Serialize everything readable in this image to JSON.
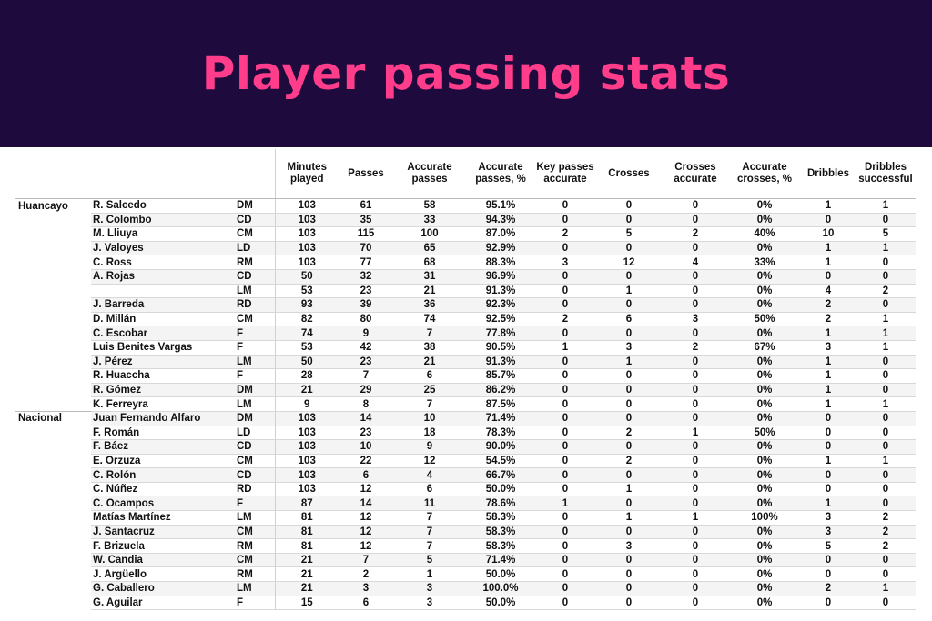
{
  "title": "Player passing stats",
  "columns": [
    "Minutes played",
    "Passes",
    "Accurate passes",
    "Accurate passes, %",
    "Key passes accurate",
    "Crosses",
    "Crosses accurate",
    "Accurate crosses, %",
    "Dribbles",
    "Dribbles successful"
  ],
  "rows": [
    {
      "team": "Huancayo",
      "player": "R. Salcedo",
      "pos": "DM",
      "v": [
        "103",
        "61",
        "58",
        "95.1%",
        "0",
        "0",
        "0",
        "0%",
        "1",
        "1"
      ]
    },
    {
      "team": "",
      "player": "R. Colombo",
      "pos": "CD",
      "v": [
        "103",
        "35",
        "33",
        "94.3%",
        "0",
        "0",
        "0",
        "0%",
        "0",
        "0"
      ]
    },
    {
      "team": "",
      "player": "M. Lliuya",
      "pos": "CM",
      "v": [
        "103",
        "115",
        "100",
        "87.0%",
        "2",
        "5",
        "2",
        "40%",
        "10",
        "5"
      ]
    },
    {
      "team": "",
      "player": "J. Valoyes",
      "pos": "LD",
      "v": [
        "103",
        "70",
        "65",
        "92.9%",
        "0",
        "0",
        "0",
        "0%",
        "1",
        "1"
      ]
    },
    {
      "team": "",
      "player": "C. Ross",
      "pos": "RM",
      "v": [
        "103",
        "77",
        "68",
        "88.3%",
        "3",
        "12",
        "4",
        "33%",
        "1",
        "0"
      ]
    },
    {
      "team": "",
      "player": "A. Rojas",
      "pos": "CD",
      "v": [
        "50",
        "32",
        "31",
        "96.9%",
        "0",
        "0",
        "0",
        "0%",
        "0",
        "0"
      ]
    },
    {
      "team": "",
      "player": "",
      "pos": "LM",
      "v": [
        "53",
        "23",
        "21",
        "91.3%",
        "0",
        "1",
        "0",
        "0%",
        "4",
        "2"
      ]
    },
    {
      "team": "",
      "player": "J. Barreda",
      "pos": "RD",
      "v": [
        "93",
        "39",
        "36",
        "92.3%",
        "0",
        "0",
        "0",
        "0%",
        "2",
        "0"
      ]
    },
    {
      "team": "",
      "player": "D. Millán",
      "pos": "CM",
      "v": [
        "82",
        "80",
        "74",
        "92.5%",
        "2",
        "6",
        "3",
        "50%",
        "2",
        "1"
      ]
    },
    {
      "team": "",
      "player": "C. Escobar",
      "pos": "F",
      "v": [
        "74",
        "9",
        "7",
        "77.8%",
        "0",
        "0",
        "0",
        "0%",
        "1",
        "1"
      ]
    },
    {
      "team": "",
      "player": "Luis Benites Vargas",
      "pos": "F",
      "v": [
        "53",
        "42",
        "38",
        "90.5%",
        "1",
        "3",
        "2",
        "67%",
        "3",
        "1"
      ]
    },
    {
      "team": "",
      "player": "J. Pérez",
      "pos": "LM",
      "v": [
        "50",
        "23",
        "21",
        "91.3%",
        "0",
        "1",
        "0",
        "0%",
        "1",
        "0"
      ]
    },
    {
      "team": "",
      "player": "R. Huaccha",
      "pos": "F",
      "v": [
        "28",
        "7",
        "6",
        "85.7%",
        "0",
        "0",
        "0",
        "0%",
        "1",
        "0"
      ]
    },
    {
      "team": "",
      "player": "R. Gómez",
      "pos": "DM",
      "v": [
        "21",
        "29",
        "25",
        "86.2%",
        "0",
        "0",
        "0",
        "0%",
        "1",
        "0"
      ]
    },
    {
      "team": "",
      "player": "K. Ferreyra",
      "pos": "LM",
      "v": [
        "9",
        "8",
        "7",
        "87.5%",
        "0",
        "0",
        "0",
        "0%",
        "1",
        "1"
      ]
    },
    {
      "team": "Nacional",
      "player": "Juan Fernando Alfaro",
      "pos": "DM",
      "v": [
        "103",
        "14",
        "10",
        "71.4%",
        "0",
        "0",
        "0",
        "0%",
        "0",
        "0"
      ]
    },
    {
      "team": "",
      "player": "F. Román",
      "pos": "LD",
      "v": [
        "103",
        "23",
        "18",
        "78.3%",
        "0",
        "2",
        "1",
        "50%",
        "0",
        "0"
      ]
    },
    {
      "team": "",
      "player": "F. Báez",
      "pos": "CD",
      "v": [
        "103",
        "10",
        "9",
        "90.0%",
        "0",
        "0",
        "0",
        "0%",
        "0",
        "0"
      ]
    },
    {
      "team": "",
      "player": "E. Orzuza",
      "pos": "CM",
      "v": [
        "103",
        "22",
        "12",
        "54.5%",
        "0",
        "2",
        "0",
        "0%",
        "1",
        "1"
      ]
    },
    {
      "team": "",
      "player": "C. Rolón",
      "pos": "CD",
      "v": [
        "103",
        "6",
        "4",
        "66.7%",
        "0",
        "0",
        "0",
        "0%",
        "0",
        "0"
      ]
    },
    {
      "team": "",
      "player": "C. Núñez",
      "pos": "RD",
      "v": [
        "103",
        "12",
        "6",
        "50.0%",
        "0",
        "1",
        "0",
        "0%",
        "0",
        "0"
      ]
    },
    {
      "team": "",
      "player": "C. Ocampos",
      "pos": "F",
      "v": [
        "87",
        "14",
        "11",
        "78.6%",
        "1",
        "0",
        "0",
        "0%",
        "1",
        "0"
      ]
    },
    {
      "team": "",
      "player": "Matías Martínez",
      "pos": "LM",
      "v": [
        "81",
        "12",
        "7",
        "58.3%",
        "0",
        "1",
        "1",
        "100%",
        "3",
        "2"
      ]
    },
    {
      "team": "",
      "player": "J. Santacruz",
      "pos": "CM",
      "v": [
        "81",
        "12",
        "7",
        "58.3%",
        "0",
        "0",
        "0",
        "0%",
        "3",
        "2"
      ]
    },
    {
      "team": "",
      "player": "F. Brizuela",
      "pos": "RM",
      "v": [
        "81",
        "12",
        "7",
        "58.3%",
        "0",
        "3",
        "0",
        "0%",
        "5",
        "2"
      ]
    },
    {
      "team": "",
      "player": "W. Candia",
      "pos": "CM",
      "v": [
        "21",
        "7",
        "5",
        "71.4%",
        "0",
        "0",
        "0",
        "0%",
        "0",
        "0"
      ]
    },
    {
      "team": "",
      "player": "J. Argüello",
      "pos": "RM",
      "v": [
        "21",
        "2",
        "1",
        "50.0%",
        "0",
        "0",
        "0",
        "0%",
        "0",
        "0"
      ]
    },
    {
      "team": "",
      "player": "G. Caballero",
      "pos": "LM",
      "v": [
        "21",
        "3",
        "3",
        "100.0%",
        "0",
        "0",
        "0",
        "0%",
        "2",
        "1"
      ]
    },
    {
      "team": "",
      "player": "G. Aguilar",
      "pos": "F",
      "v": [
        "15",
        "6",
        "3",
        "50.0%",
        "0",
        "0",
        "0",
        "0%",
        "0",
        "0"
      ]
    }
  ]
}
